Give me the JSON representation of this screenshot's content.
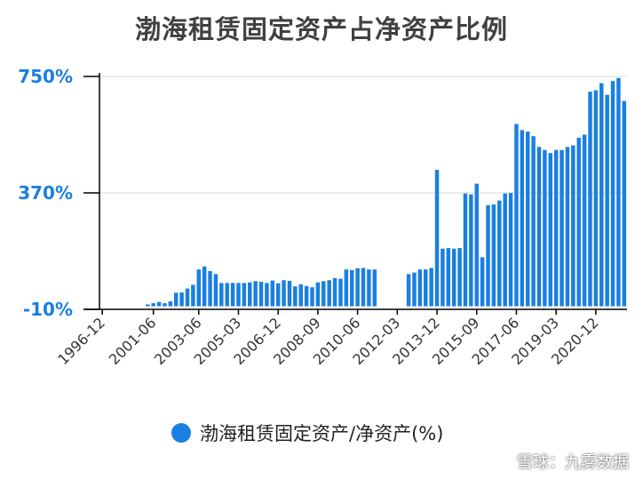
{
  "title": "渤海租赁固定资产占净资产比例",
  "watermark": {
    "text": "雪球：九雾数据"
  },
  "colors": {
    "bar": "#1a7fe0",
    "axis": "#000000",
    "grid": "#d9d9d9",
    "ytick": "#1a7fe0"
  },
  "chart_data": {
    "type": "bar",
    "ylim": [
      -10,
      750
    ],
    "yticks": [
      -10,
      370,
      750
    ],
    "ytick_labels": [
      "-10%",
      "370%",
      "750%"
    ],
    "grid": "horizontal",
    "legend_position": "bottom-center",
    "x_tick_labels": [
      "1996-12",
      "2001-06",
      "2003-06",
      "2005-03",
      "2006-12",
      "2008-09",
      "2010-06",
      "2012-03",
      "2013-12",
      "2015-09",
      "2017-06",
      "2019-03",
      "2020-12"
    ],
    "x_tick_index": [
      0,
      9,
      17,
      24,
      31,
      38,
      45,
      52,
      59,
      66,
      73,
      80,
      87
    ],
    "series": [
      {
        "name": "渤海租赁固定资产/净资产(%)",
        "values": [
          null,
          null,
          null,
          null,
          null,
          null,
          null,
          null,
          6,
          10,
          14,
          10,
          16,
          44,
          45,
          58,
          70,
          120,
          130,
          115,
          105,
          76,
          76,
          76,
          76,
          76,
          78,
          82,
          80,
          76,
          84,
          75,
          85,
          83,
          65,
          72,
          66,
          62,
          78,
          82,
          85,
          92,
          90,
          120,
          118,
          124,
          125,
          120,
          120,
          null,
          null,
          null,
          null,
          null,
          105,
          110,
          120,
          120,
          125,
          445,
          188,
          190,
          188,
          190,
          368,
          365,
          400,
          160,
          330,
          332,
          345,
          368,
          370,
          595,
          575,
          570,
          555,
          520,
          510,
          500,
          510,
          510,
          520,
          525,
          550,
          560,
          700,
          705,
          728,
          690,
          735,
          745,
          670
        ]
      }
    ]
  }
}
